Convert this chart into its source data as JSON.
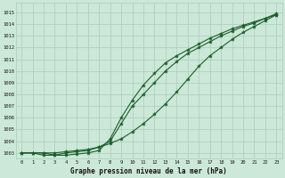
{
  "title": "Graphe pression niveau de la mer (hPa)",
  "xlabel_hours": [
    0,
    1,
    2,
    3,
    4,
    5,
    6,
    7,
    8,
    9,
    10,
    11,
    12,
    13,
    14,
    15,
    16,
    17,
    18,
    19,
    20,
    21,
    22,
    23
  ],
  "ylim": [
    1002.5,
    1015.8
  ],
  "xlim": [
    -0.5,
    23.5
  ],
  "yticks": [
    1003,
    1004,
    1005,
    1006,
    1007,
    1008,
    1009,
    1010,
    1011,
    1012,
    1013,
    1014,
    1015
  ],
  "bg_color": "#cce8d8",
  "grid_color": "#aaccbb",
  "line_color": "#1a5e2a",
  "line1": [
    1003.0,
    1003.0,
    1003.0,
    1003.0,
    1003.1,
    1003.2,
    1003.3,
    1003.5,
    1003.8,
    1004.2,
    1004.8,
    1005.5,
    1006.3,
    1007.2,
    1008.2,
    1009.3,
    1010.4,
    1011.3,
    1012.0,
    1012.7,
    1013.3,
    1013.8,
    1014.3,
    1014.8
  ],
  "line2": [
    1003.0,
    1003.0,
    1003.0,
    1002.8,
    1002.8,
    1002.9,
    1003.0,
    1003.2,
    1004.2,
    1006.0,
    1007.5,
    1008.8,
    1009.8,
    1010.7,
    1011.3,
    1011.8,
    1012.3,
    1012.8,
    1013.2,
    1013.6,
    1013.9,
    1014.2,
    1014.5,
    1014.8
  ],
  "line3": [
    1003.0,
    1003.0,
    1002.8,
    1002.8,
    1003.0,
    1003.1,
    1003.2,
    1003.5,
    1004.0,
    1005.5,
    1007.0,
    1008.0,
    1009.0,
    1010.0,
    1010.8,
    1011.5,
    1012.0,
    1012.5,
    1013.0,
    1013.4,
    1013.8,
    1014.1,
    1014.5,
    1014.9
  ]
}
